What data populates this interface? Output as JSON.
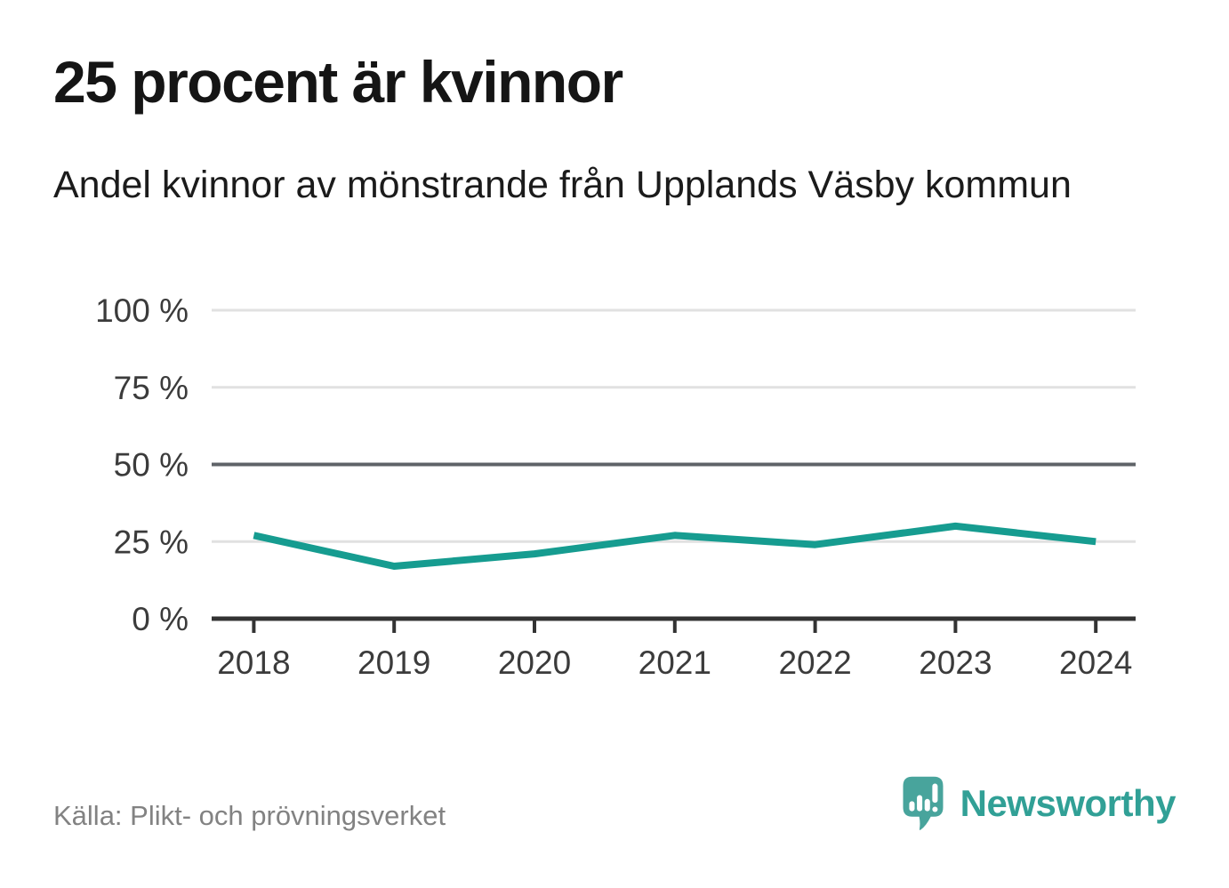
{
  "header": {
    "title": "25 procent är kvinnor",
    "subtitle": "Andel kvinnor av mönstrande från Upplands Väsby kommun"
  },
  "footer": {
    "source": "Källa: Plikt- och prövningsverket",
    "brand_name": "Newsworthy"
  },
  "colors": {
    "line": "#169c90",
    "grid_light": "#e1e1e1",
    "grid_emphasis": "#5f6368",
    "axis": "#333333",
    "tick_label": "#3b3b3b",
    "title_text": "#151515",
    "source_text": "#828282",
    "brand_icon": "#48a49c",
    "brand_text": "#31a096",
    "brand_glyphs": "#ffffff"
  },
  "chart_data": {
    "type": "line",
    "title": "25 procent är kvinnor",
    "subtitle": "Andel kvinnor av mönstrande från Upplands Väsby kommun",
    "x": [
      2018,
      2019,
      2020,
      2021,
      2022,
      2023,
      2024
    ],
    "series": [
      {
        "name": "Andel kvinnor av mönstrande",
        "values": [
          27,
          17,
          21,
          27,
          24,
          30,
          25
        ]
      }
    ],
    "xlabel": "",
    "ylabel": "",
    "ylim": [
      0,
      100
    ],
    "y_ticks": [
      0,
      25,
      50,
      75,
      100
    ],
    "y_tick_format": "{v} %",
    "emphasized_gridline": 50,
    "grid": "horizontal",
    "legend": "none",
    "markers": "none"
  }
}
